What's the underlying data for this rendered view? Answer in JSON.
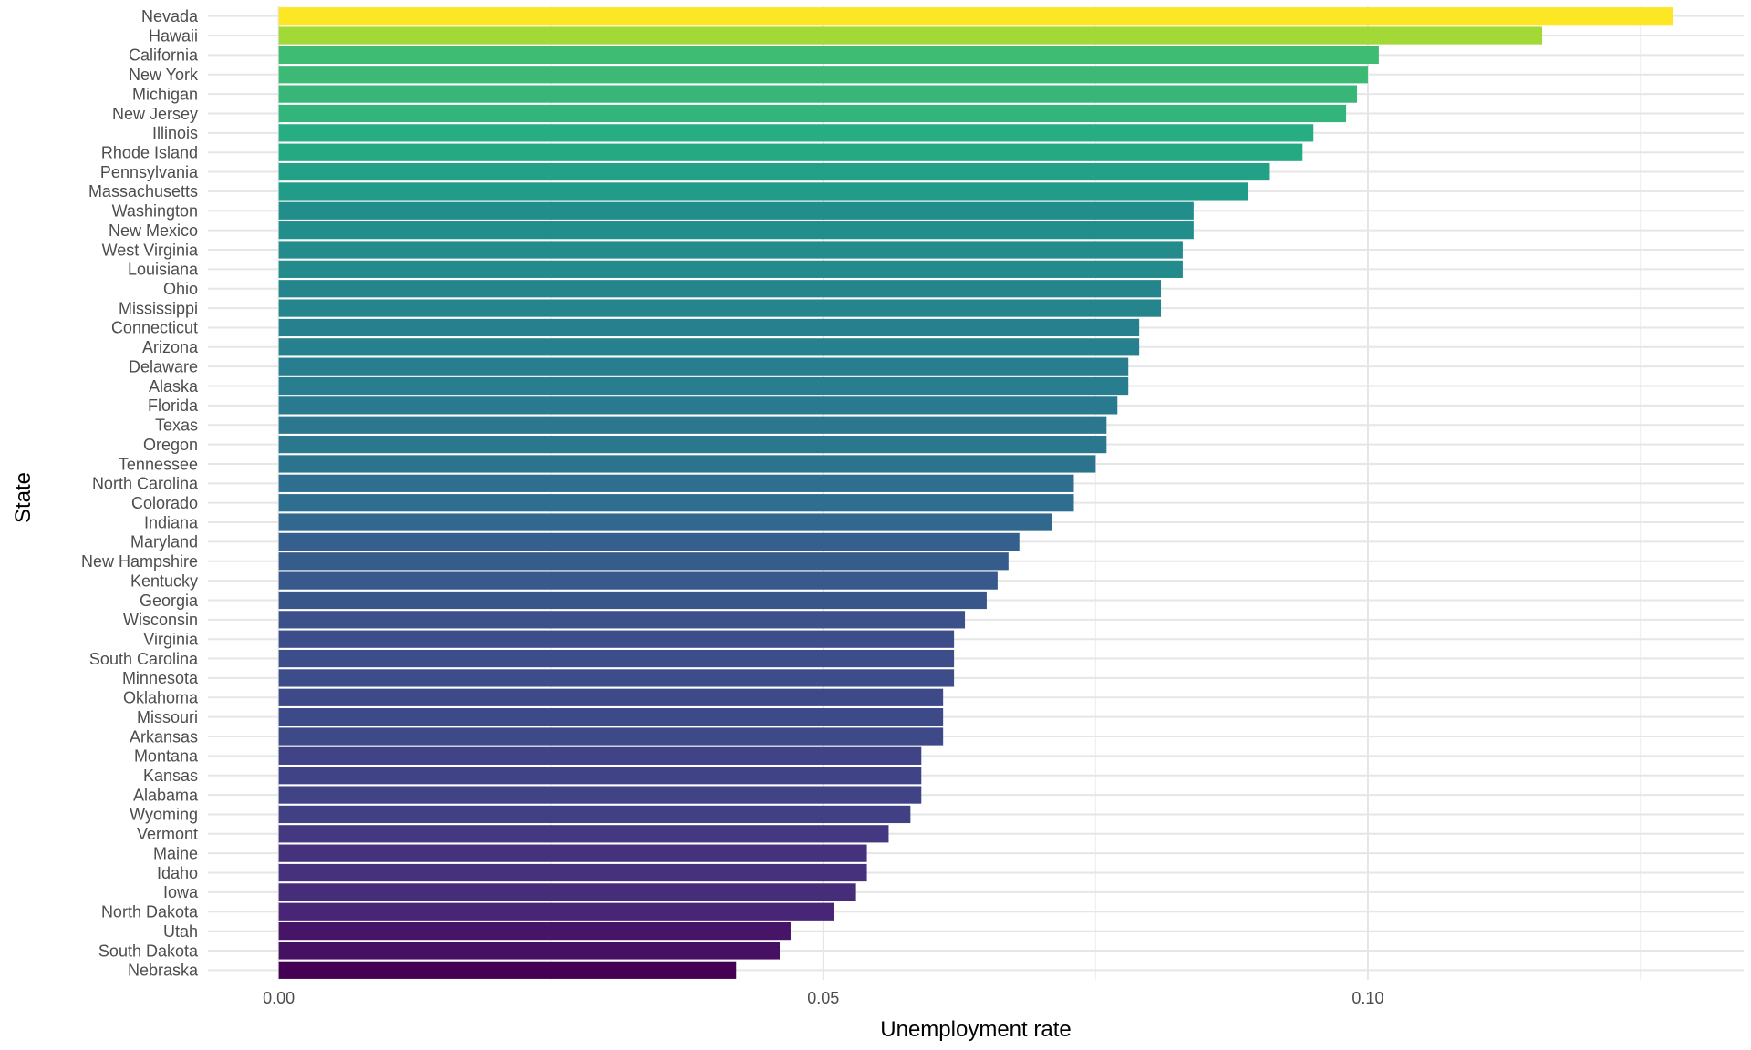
{
  "chart_data": {
    "type": "bar",
    "orientation": "horizontal",
    "xlabel": "Unemployment rate",
    "ylabel": "State",
    "xlim": [
      -0.0065,
      0.1345
    ],
    "x_ticks": [
      0.0,
      0.05,
      0.1
    ],
    "x_tick_labels": [
      "0.00",
      "0.05",
      "0.10"
    ],
    "grid": true,
    "legend": "none",
    "color_scale": "viridis",
    "categories": [
      "Nevada",
      "Hawaii",
      "California",
      "New York",
      "Michigan",
      "New Jersey",
      "Illinois",
      "Rhode Island",
      "Pennsylvania",
      "Massachusetts",
      "Washington",
      "New Mexico",
      "West Virginia",
      "Louisiana",
      "Ohio",
      "Mississippi",
      "Connecticut",
      "Arizona",
      "Delaware",
      "Alaska",
      "Florida",
      "Texas",
      "Oregon",
      "Tennessee",
      "North Carolina",
      "Colorado",
      "Indiana",
      "Maryland",
      "New Hampshire",
      "Kentucky",
      "Georgia",
      "Wisconsin",
      "Virginia",
      "South Carolina",
      "Minnesota",
      "Oklahoma",
      "Missouri",
      "Arkansas",
      "Montana",
      "Kansas",
      "Alabama",
      "Wyoming",
      "Vermont",
      "Maine",
      "Idaho",
      "Iowa",
      "North Dakota",
      "Utah",
      "South Dakota",
      "Nebraska"
    ],
    "values": [
      0.128,
      0.116,
      0.101,
      0.1,
      0.099,
      0.098,
      0.095,
      0.094,
      0.091,
      0.089,
      0.084,
      0.084,
      0.083,
      0.083,
      0.081,
      0.081,
      0.079,
      0.079,
      0.078,
      0.078,
      0.077,
      0.076,
      0.076,
      0.075,
      0.073,
      0.073,
      0.071,
      0.068,
      0.067,
      0.066,
      0.065,
      0.063,
      0.062,
      0.062,
      0.062,
      0.061,
      0.061,
      0.061,
      0.059,
      0.059,
      0.059,
      0.058,
      0.056,
      0.054,
      0.054,
      0.053,
      0.051,
      0.047,
      0.046,
      0.042
    ]
  }
}
